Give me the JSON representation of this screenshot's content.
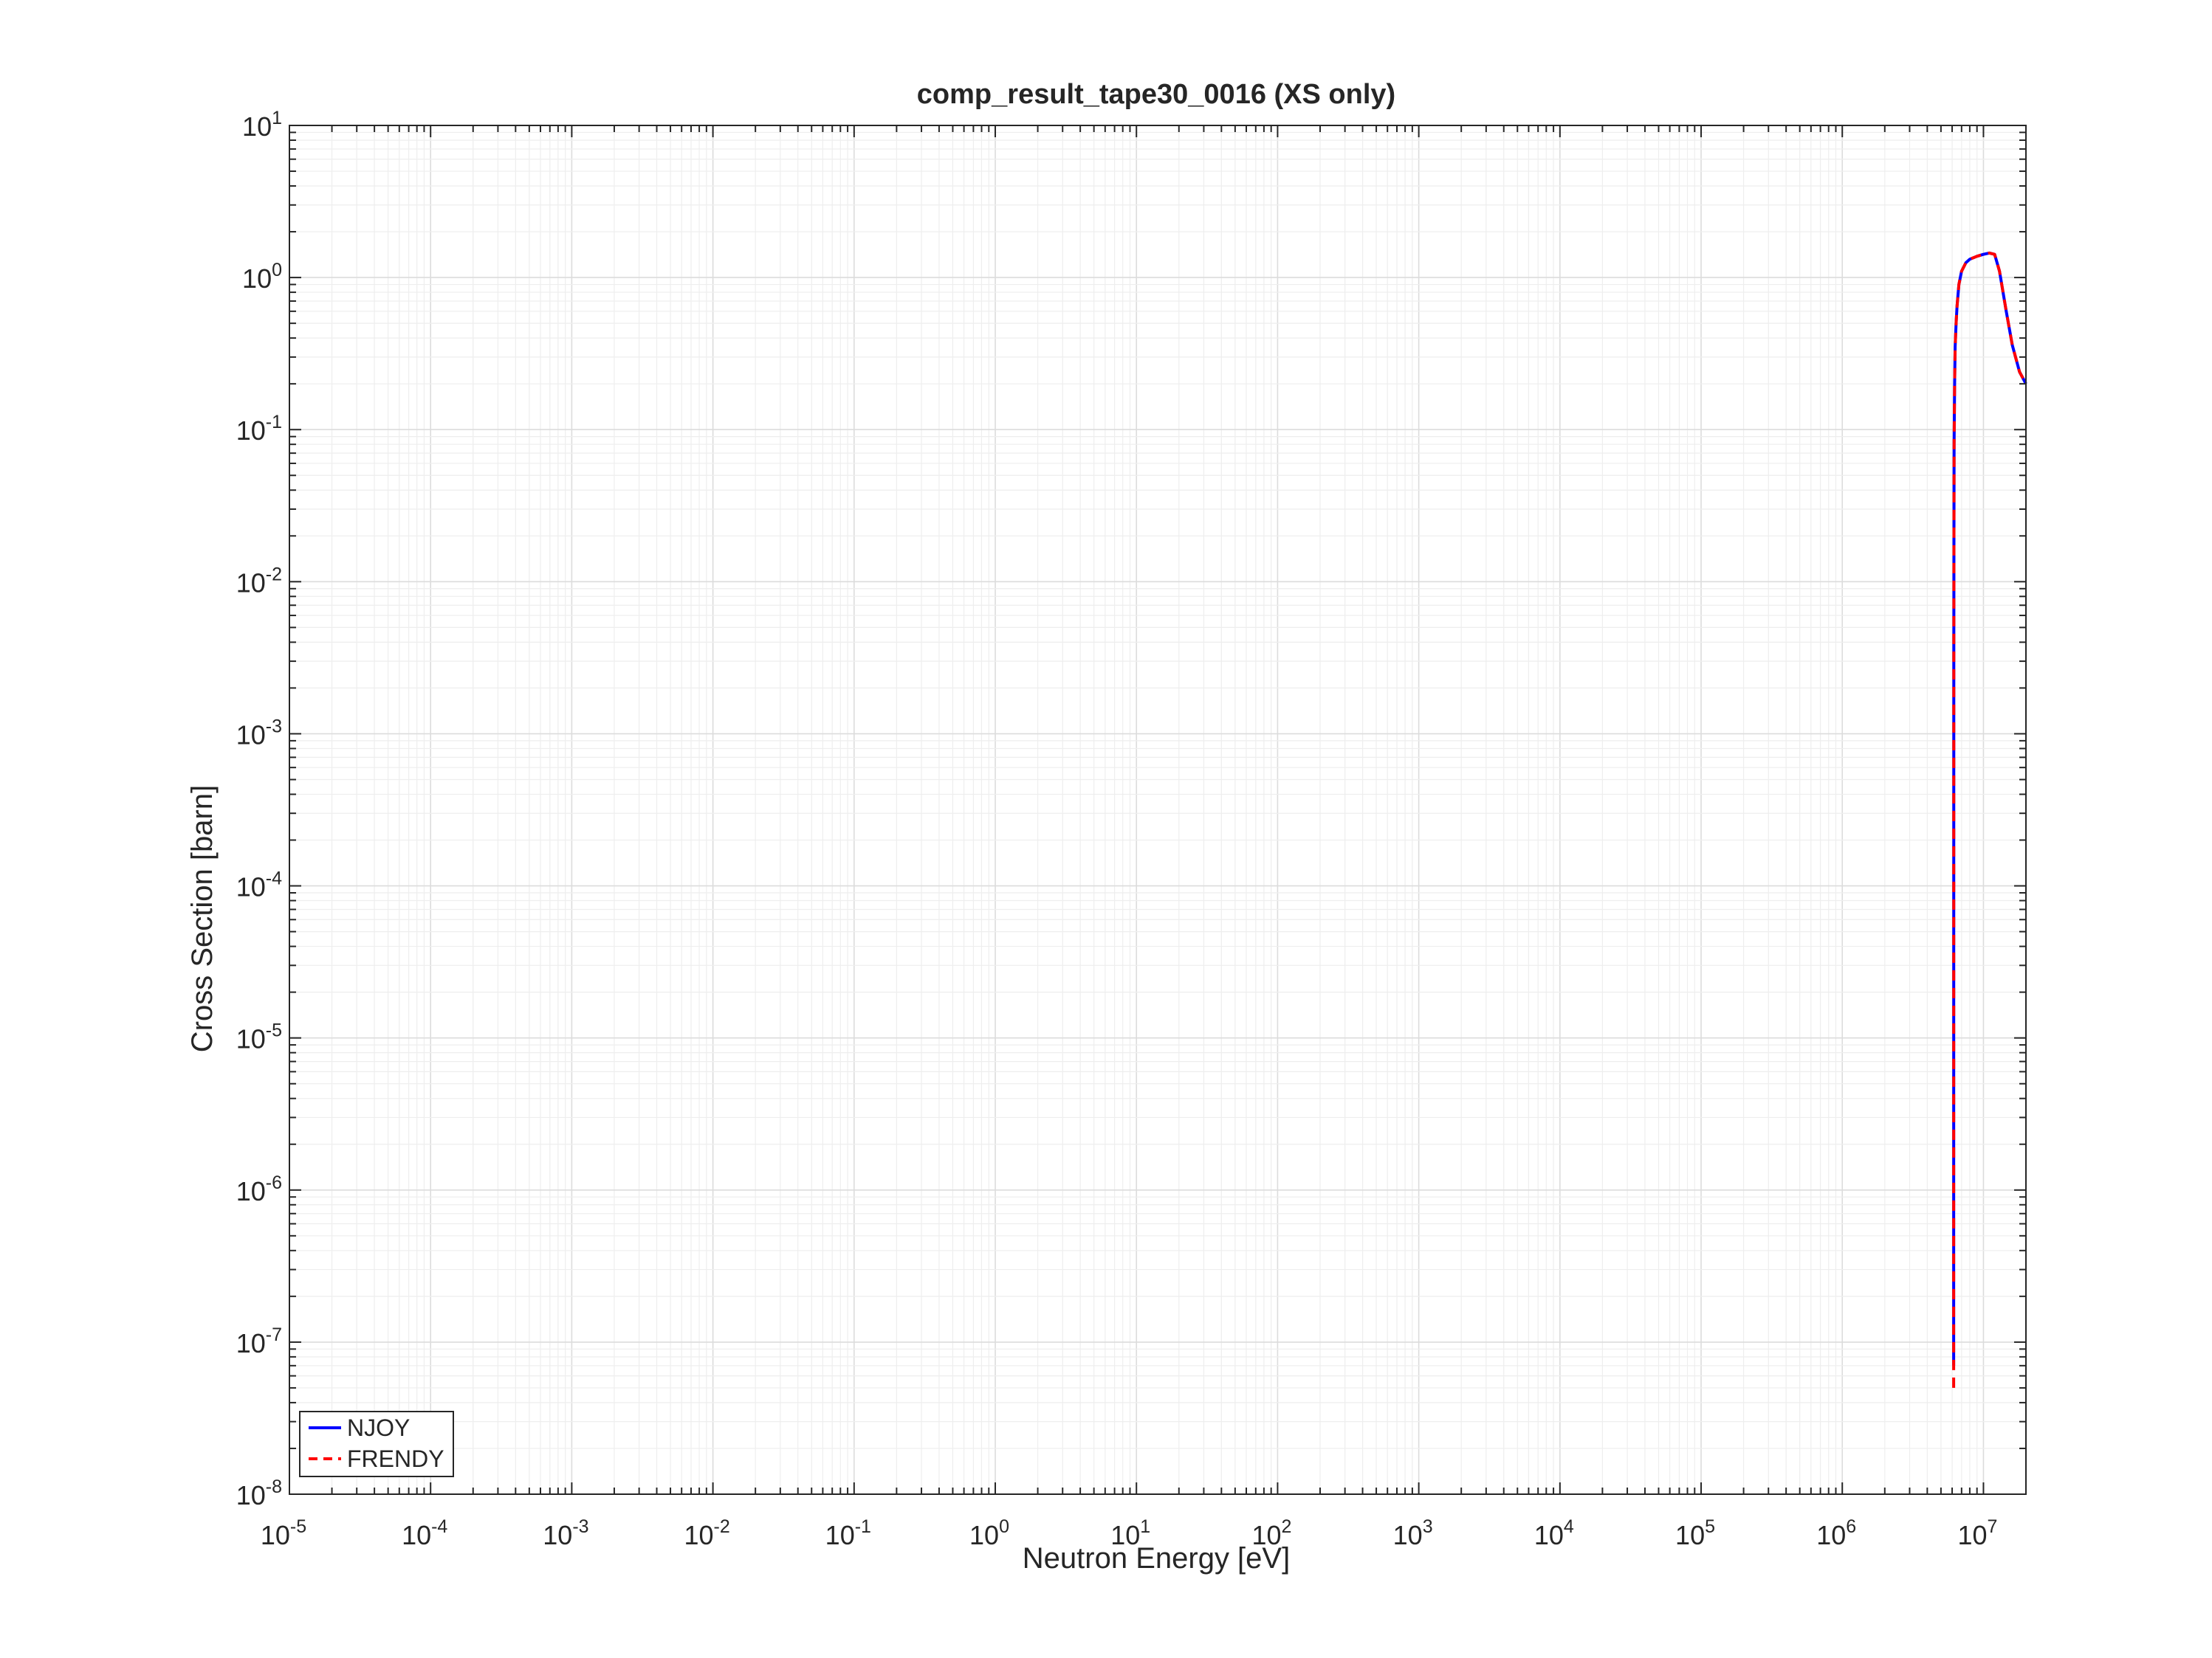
{
  "chart_data": {
    "type": "line",
    "title": "comp_result_tape30_0016 (XS only)",
    "xlabel": "Neutron Energy [eV]",
    "ylabel": "Cross Section [barn]",
    "xscale": "log",
    "yscale": "log",
    "xlim": [
      1e-05,
      20000000.0
    ],
    "ylim": [
      1e-08,
      10
    ],
    "grid": true,
    "legend_position": "bottom-left",
    "x_tick_labels": [
      {
        "base": "10",
        "exp": "-5",
        "value": 1e-05
      },
      {
        "base": "10",
        "exp": "-4",
        "value": 0.0001
      },
      {
        "base": "10",
        "exp": "-3",
        "value": 0.001
      },
      {
        "base": "10",
        "exp": "-2",
        "value": 0.01
      },
      {
        "base": "10",
        "exp": "-1",
        "value": 0.1
      },
      {
        "base": "10",
        "exp": "0",
        "value": 1
      },
      {
        "base": "10",
        "exp": "1",
        "value": 10
      },
      {
        "base": "10",
        "exp": "2",
        "value": 100
      },
      {
        "base": "10",
        "exp": "3",
        "value": 1000
      },
      {
        "base": "10",
        "exp": "4",
        "value": 10000
      },
      {
        "base": "10",
        "exp": "5",
        "value": 100000
      },
      {
        "base": "10",
        "exp": "6",
        "value": 1000000
      },
      {
        "base": "10",
        "exp": "7",
        "value": 10000000
      }
    ],
    "y_tick_labels": [
      {
        "base": "10",
        "exp": "-8",
        "value": 1e-08
      },
      {
        "base": "10",
        "exp": "-7",
        "value": 1e-07
      },
      {
        "base": "10",
        "exp": "-6",
        "value": 1e-06
      },
      {
        "base": "10",
        "exp": "-5",
        "value": 1e-05
      },
      {
        "base": "10",
        "exp": "-4",
        "value": 0.0001
      },
      {
        "base": "10",
        "exp": "-3",
        "value": 0.001
      },
      {
        "base": "10",
        "exp": "-2",
        "value": 0.01
      },
      {
        "base": "10",
        "exp": "-1",
        "value": 0.1
      },
      {
        "base": "10",
        "exp": "0",
        "value": 1
      },
      {
        "base": "10",
        "exp": "1",
        "value": 10
      }
    ],
    "series": [
      {
        "name": "NJOY",
        "color": "#0000ff",
        "style": "solid",
        "x": [
          6150000.0,
          6160000.0,
          6170000.0,
          6180000.0,
          6200000.0,
          6250000.0,
          6300000.0,
          6400000.0,
          6500000.0,
          6700000.0,
          7000000.0,
          7500000.0,
          8000000.0,
          9000000.0,
          10000000.0,
          11000000.0,
          12000000.0,
          13000000.0,
          14500000.0,
          16000000.0,
          18000000.0,
          20000000.0
        ],
        "y": [
          7e-08,
          3e-05,
          0.003,
          0.02,
          0.08,
          0.2,
          0.35,
          0.5,
          0.65,
          0.9,
          1.1,
          1.25,
          1.32,
          1.38,
          1.42,
          1.45,
          1.42,
          1.1,
          0.6,
          0.36,
          0.24,
          0.2
        ]
      },
      {
        "name": "FRENDY",
        "color": "#ff0000",
        "style": "dashed",
        "x": [
          6150000.0,
          6160000.0,
          6170000.0,
          6180000.0,
          6200000.0,
          6250000.0,
          6300000.0,
          6400000.0,
          6500000.0,
          6700000.0,
          7000000.0,
          7500000.0,
          8000000.0,
          9000000.0,
          10000000.0,
          11000000.0,
          12000000.0,
          13000000.0,
          14500000.0,
          16000000.0,
          18000000.0,
          20000000.0
        ],
        "y": [
          5e-08,
          3e-05,
          0.003,
          0.02,
          0.08,
          0.2,
          0.35,
          0.5,
          0.65,
          0.9,
          1.1,
          1.25,
          1.32,
          1.38,
          1.42,
          1.45,
          1.42,
          1.1,
          0.6,
          0.36,
          0.24,
          0.2
        ]
      }
    ]
  }
}
